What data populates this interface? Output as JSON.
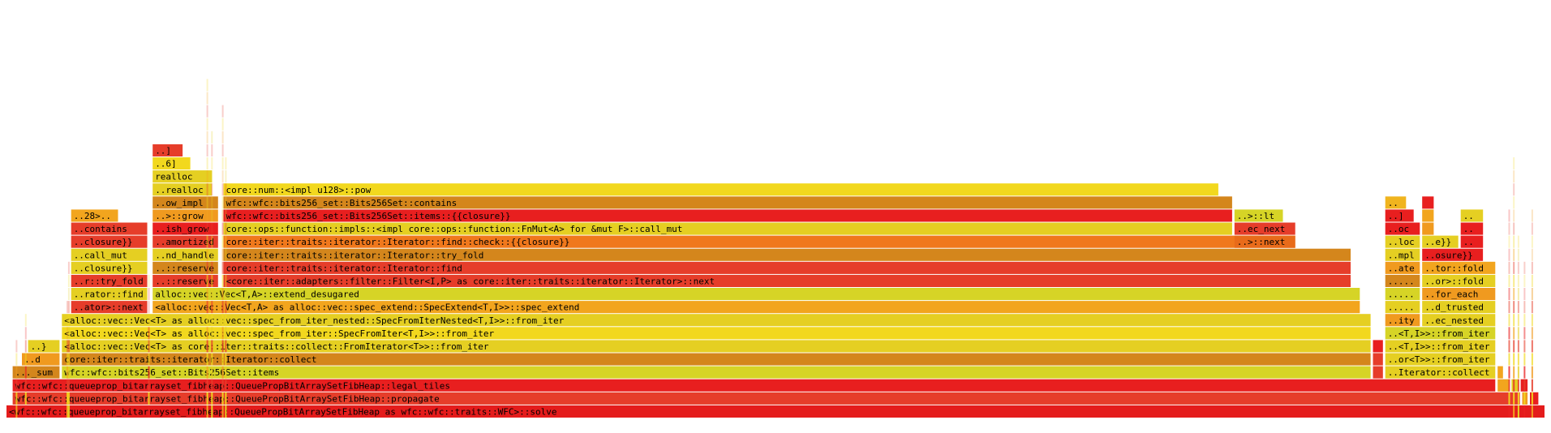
{
  "chart_data": {
    "type": "flamegraph",
    "colors": {
      "red": "#e81f1f",
      "orange": "#f09a1f",
      "dkorange": "#d4861c",
      "yellow": "#e5cf22",
      "lime": "#d6d426"
    },
    "frames": [
      {
        "label": "<wfc::wfc::queueprop_bitarrayset_fibheap::QueuePropBitArraySetFibHeap as wfc::wfc::traits::WFC>::solve",
        "depth": 0,
        "start": 0.0,
        "end": 100.0,
        "color": "#e41c1c"
      },
      {
        "label": "wfc::wfc::queueprop_bitarrayset_fibheap::QueuePropBitArraySetFibHeap::propagate",
        "depth": 1,
        "start": 0.4,
        "end": 98.4,
        "color": "#e63d2a"
      },
      {
        "label": "",
        "depth": 1,
        "start": 98.5,
        "end": 98.9,
        "color": "#f09a1f"
      },
      {
        "label": "",
        "depth": 1,
        "start": 99.0,
        "end": 99.6,
        "color": "#e81f1f"
      },
      {
        "label": "wfc::wfc::queueprop_bitarrayset_fibheap::QueuePropBitArraySetFibHeap::legal_tiles",
        "depth": 2,
        "start": 0.4,
        "end": 96.8,
        "color": "#e81f1f"
      },
      {
        "label": "",
        "depth": 2,
        "start": 96.9,
        "end": 97.7,
        "color": "#f2a51e"
      },
      {
        "label": "",
        "depth": 2,
        "start": 97.8,
        "end": 98.3,
        "color": "#e5cf22"
      },
      {
        "label": "",
        "depth": 2,
        "start": 98.4,
        "end": 98.9,
        "color": "#e81f1f"
      },
      {
        "label": "..._sum",
        "depth": 3,
        "start": 0.4,
        "end": 3.5,
        "color": "#d4861c"
      },
      {
        "label": "wfc::wfc::bits256_set::Bits256Set::items",
        "depth": 3,
        "start": 3.6,
        "end": 88.7,
        "color": "#d6d426"
      },
      {
        "label": "",
        "depth": 3,
        "start": 88.8,
        "end": 89.5,
        "color": "#e63d2a"
      },
      {
        "label": "..Iterator::collect",
        "depth": 3,
        "start": 89.6,
        "end": 96.8,
        "color": "#e5cf22"
      },
      {
        "label": "",
        "depth": 3,
        "start": 96.9,
        "end": 97.3,
        "color": "#f2a51e"
      },
      {
        "label": "..d",
        "depth": 4,
        "start": 1.0,
        "end": 3.5,
        "color": "#f09a1f"
      },
      {
        "label": "core::iter::traits::iterator::Iterator::collect",
        "depth": 4,
        "start": 3.6,
        "end": 88.7,
        "color": "#d4861c"
      },
      {
        "label": "",
        "depth": 4,
        "start": 88.8,
        "end": 89.5,
        "color": "#e63d2a"
      },
      {
        "label": "..or<T>>::from_iter",
        "depth": 4,
        "start": 89.6,
        "end": 96.8,
        "color": "#e5cf22"
      },
      {
        "label": "..}",
        "depth": 5,
        "start": 1.4,
        "end": 3.5,
        "color": "#e5cf22"
      },
      {
        "label": "<alloc::vec::Vec<T> as core::iter::traits::collect::FromIterator<T>>::from_iter",
        "depth": 5,
        "start": 3.6,
        "end": 88.7,
        "color": "#e5cf22"
      },
      {
        "label": "",
        "depth": 5,
        "start": 88.8,
        "end": 89.5,
        "color": "#e81f1f"
      },
      {
        "label": "..<T,I>>::from_iter",
        "depth": 5,
        "start": 89.6,
        "end": 96.8,
        "color": "#e5cf22"
      },
      {
        "label": "<alloc::vec::Vec<T> as alloc::vec::spec_from_iter::SpecFromIter<T,I>>::from_iter",
        "depth": 6,
        "start": 3.6,
        "end": 88.7,
        "color": "#f2d81e"
      },
      {
        "label": "..<T,I>>::from_iter",
        "depth": 6,
        "start": 89.6,
        "end": 96.8,
        "color": "#d6d426"
      },
      {
        "label": "<alloc::vec::Vec<T> as alloc::vec::spec_from_iter_nested::SpecFromIterNested<T,I>>::from_iter",
        "depth": 7,
        "start": 3.6,
        "end": 88.7,
        "color": "#e5cf22"
      },
      {
        "label": "..ity",
        "depth": 7,
        "start": 89.6,
        "end": 91.9,
        "color": "#f09a1f"
      },
      {
        "label": "..ec_nested",
        "depth": 7,
        "start": 92.0,
        "end": 96.8,
        "color": "#e5cf22"
      },
      {
        "label": "..ator>::next",
        "depth": 8,
        "start": 4.2,
        "end": 9.2,
        "color": "#e63d2a"
      },
      {
        "label": "<alloc::vec::Vec<T,A> as alloc::vec::spec_extend::SpecExtend<T,I>>::spec_extend",
        "depth": 8,
        "start": 9.5,
        "end": 88.0,
        "color": "#f2a51e"
      },
      {
        "label": "..._in",
        "depth": 8,
        "start": 89.6,
        "end": 91.9,
        "color": "#e5cf22"
      },
      {
        "label": "..d_trusted",
        "depth": 8,
        "start": 92.0,
        "end": 96.8,
        "color": "#e5cf22"
      },
      {
        "label": "..rator::find",
        "depth": 9,
        "start": 4.2,
        "end": 9.2,
        "color": "#e5cf22"
      },
      {
        "label": "alloc::vec::Vec<T,A>::extend_desugared",
        "depth": 9,
        "start": 9.5,
        "end": 88.0,
        "color": "#d6d426"
      },
      {
        "label": "..._in",
        "depth": 9,
        "start": 89.6,
        "end": 91.9,
        "color": "#d6d426"
      },
      {
        "label": "..for_each",
        "depth": 9,
        "start": 92.0,
        "end": 96.8,
        "color": "#f09a1f"
      },
      {
        "label": "..r::try_fold",
        "depth": 10,
        "start": 4.2,
        "end": 9.2,
        "color": "#e63d2a"
      },
      {
        "label": "..::reserve",
        "depth": 10,
        "start": 9.5,
        "end": 13.8,
        "color": "#e63d2a"
      },
      {
        "label": "<core::iter::adapters::filter::Filter<I,P> as core::iter::traits::iterator::Iterator>::next",
        "depth": 10,
        "start": 14.1,
        "end": 87.4,
        "color": "#e63d2a"
      },
      {
        "label": "..._in",
        "depth": 10,
        "start": 89.6,
        "end": 91.9,
        "color": "#d4861c"
      },
      {
        "label": "..or>::fold",
        "depth": 10,
        "start": 92.0,
        "end": 96.8,
        "color": "#e5cf22"
      },
      {
        "label": "..closure}}",
        "depth": 11,
        "start": 4.2,
        "end": 9.2,
        "color": "#e5cf22"
      },
      {
        "label": "..::reserve",
        "depth": 11,
        "start": 9.5,
        "end": 13.8,
        "color": "#d4861c"
      },
      {
        "label": "core::iter::traits::iterator::Iterator::find",
        "depth": 11,
        "start": 14.1,
        "end": 87.4,
        "color": "#e63d2a"
      },
      {
        "label": "..ate",
        "depth": 11,
        "start": 89.6,
        "end": 91.9,
        "color": "#f09a1f"
      },
      {
        "label": "..tor::fold",
        "depth": 11,
        "start": 92.0,
        "end": 96.8,
        "color": "#f2a51e"
      },
      {
        "label": "..call_mut",
        "depth": 12,
        "start": 4.2,
        "end": 9.2,
        "color": "#e5cf22"
      },
      {
        "label": "..nd_handle",
        "depth": 12,
        "start": 9.5,
        "end": 13.8,
        "color": "#e5cf22"
      },
      {
        "label": "core::iter::traits::iterator::Iterator::try_fold",
        "depth": 12,
        "start": 14.1,
        "end": 87.4,
        "color": "#d4861c"
      },
      {
        "label": "..mpl",
        "depth": 12,
        "start": 89.6,
        "end": 91.9,
        "color": "#e5cf22"
      },
      {
        "label": "..osure}}",
        "depth": 12,
        "start": 92.0,
        "end": 96.0,
        "color": "#e81f1f"
      },
      {
        "label": "..closure}}",
        "depth": 13,
        "start": 4.2,
        "end": 9.2,
        "color": "#e63d2a"
      },
      {
        "label": "..amortized",
        "depth": 13,
        "start": 9.5,
        "end": 13.8,
        "color": "#e63d2a"
      },
      {
        "label": "core::iter::traits::iterator::Iterator::find::check::{{closure}}",
        "depth": 13,
        "start": 14.1,
        "end": 83.8,
        "color": "#f0781c"
      },
      {
        "label": "..>::next",
        "depth": 13,
        "start": 79.8,
        "end": 83.8,
        "color": "#e86b1a"
      },
      {
        "label": "..loc",
        "depth": 13,
        "start": 89.6,
        "end": 91.9,
        "color": "#e5cf22"
      },
      {
        "label": "..e}}",
        "depth": 13,
        "start": 92.0,
        "end": 94.4,
        "color": "#e5cf22"
      },
      {
        "label": "..",
        "depth": 13,
        "start": 94.5,
        "end": 96.0,
        "color": "#e81f1f"
      },
      {
        "label": "..contains",
        "depth": 14,
        "start": 4.2,
        "end": 9.2,
        "color": "#e63d2a"
      },
      {
        "label": "..ish_grow",
        "depth": 14,
        "start": 9.5,
        "end": 13.8,
        "color": "#e81f1f"
      },
      {
        "label": "core::ops::function::impls::<impl core::ops::function::FnMut<A> for &mut F>::call_mut",
        "depth": 14,
        "start": 14.1,
        "end": 79.7,
        "color": "#e5cf22"
      },
      {
        "label": "..ec_next",
        "depth": 14,
        "start": 79.8,
        "end": 83.8,
        "color": "#e63d2a"
      },
      {
        "label": "..oc",
        "depth": 14,
        "start": 89.6,
        "end": 91.9,
        "color": "#e81f1f"
      },
      {
        "label": "",
        "depth": 14,
        "start": 92.0,
        "end": 92.8,
        "color": "#f09a1f"
      },
      {
        "label": "..",
        "depth": 14,
        "start": 94.5,
        "end": 96.0,
        "color": "#e81f1f"
      },
      {
        "label": "..28>::pow",
        "depth": 15,
        "start": 4.2,
        "end": 7.3,
        "color": "#f2a51e"
      },
      {
        "label": "..>::grow",
        "depth": 15,
        "start": 9.5,
        "end": 13.8,
        "color": "#f09a1f"
      },
      {
        "label": "wfc::wfc::bits256_set::Bits256Set::items::{{closure}}",
        "depth": 15,
        "start": 14.1,
        "end": 79.7,
        "color": "#e81f1f"
      },
      {
        "label": "..>::lt",
        "depth": 15,
        "start": 79.8,
        "end": 83.0,
        "color": "#d6d426"
      },
      {
        "label": "..]",
        "depth": 15,
        "start": 89.6,
        "end": 91.5,
        "color": "#e81f1f"
      },
      {
        "label": "",
        "depth": 15,
        "start": 92.0,
        "end": 92.8,
        "color": "#f2a51e"
      },
      {
        "label": "..",
        "depth": 15,
        "start": 94.5,
        "end": 96.0,
        "color": "#e5cf22"
      },
      {
        "label": "..ow_impl",
        "depth": 16,
        "start": 9.5,
        "end": 13.8,
        "color": "#d4861c"
      },
      {
        "label": "wfc::wfc::bits256_set::Bits256Set::contains",
        "depth": 16,
        "start": 14.1,
        "end": 79.7,
        "color": "#d4861c"
      },
      {
        "label": "..",
        "depth": 16,
        "start": 89.6,
        "end": 91.0,
        "color": "#f0b41e"
      },
      {
        "label": "",
        "depth": 16,
        "start": 92.0,
        "end": 92.8,
        "color": "#e81f1f"
      },
      {
        "label": "..realloc",
        "depth": 17,
        "start": 9.5,
        "end": 13.4,
        "color": "#e5cf22"
      },
      {
        "label": "core::num::<impl u128>::pow",
        "depth": 17,
        "start": 14.1,
        "end": 78.8,
        "color": "#f2d81e"
      },
      {
        "label": "realloc",
        "depth": 18,
        "start": 9.5,
        "end": 13.4,
        "color": "#e5cf22"
      },
      {
        "label": "..6]",
        "depth": 19,
        "start": 9.5,
        "end": 12.0,
        "color": "#f2d81e"
      },
      {
        "label": "..]",
        "depth": 20,
        "start": 9.5,
        "end": 11.5,
        "color": "#e63d2a"
      }
    ]
  }
}
